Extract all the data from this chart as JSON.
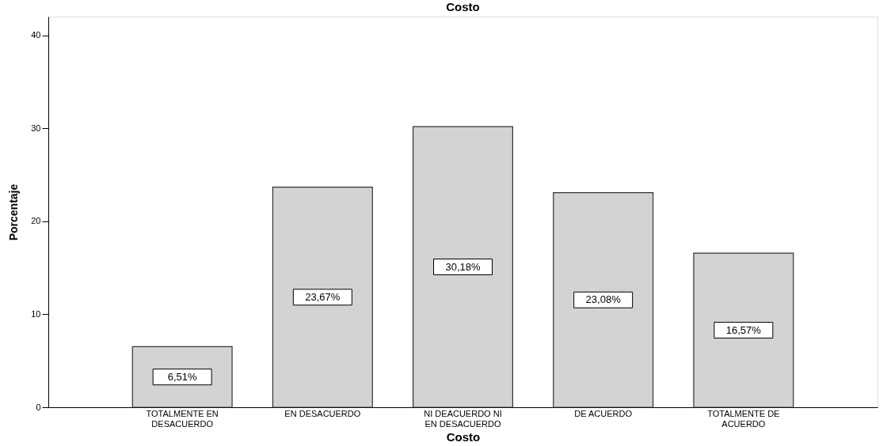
{
  "chart_data": {
    "type": "bar",
    "title": "Costo",
    "xlabel": "Costo",
    "ylabel": "Porcentaje",
    "categories": [
      "TOTALMENTE EN DESACUERDO",
      "EN DESACUERDO",
      "NI DEACUERDO NI EN DESACUERDO",
      "DE ACUERDO",
      "TOTALMENTE DE ACUERDO"
    ],
    "values": [
      6.51,
      23.67,
      30.18,
      23.08,
      16.57
    ],
    "value_labels": [
      "6,51%",
      "23,67%",
      "30,18%",
      "23,08%",
      "16,57%"
    ],
    "color": "#d3d3d3",
    "ylim": [
      0,
      42
    ],
    "yticks": [
      0,
      10,
      20,
      30,
      40
    ],
    "grid": false
  }
}
